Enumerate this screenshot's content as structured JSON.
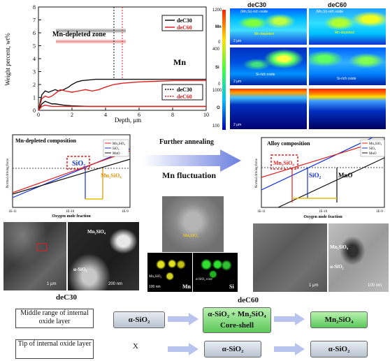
{
  "top_chart": {
    "ylabel": "Weight percent, wt%",
    "xlabel": "Depth, μm",
    "x_ticks": [
      "0",
      "2",
      "4",
      "6",
      "8",
      "10"
    ],
    "y_ticks": [
      "0",
      "1",
      "2",
      "3",
      "4",
      "5",
      "6",
      "7",
      "8"
    ],
    "zone_label": "Mn-depleted zone",
    "mn_label": "Mn",
    "si_label": "Si",
    "legend_mn": [
      "deC30",
      "deC60"
    ],
    "legend_si": [
      "deC30",
      "deC60"
    ]
  },
  "chart_data": [
    {
      "type": "line",
      "xlabel": "Depth, μm",
      "ylabel": "Weight percent, wt%",
      "xlim": [
        0,
        10
      ],
      "ylim": [
        0,
        8
      ],
      "series": [
        {
          "name": "deC30",
          "element": "Mn",
          "color": "#111111",
          "x": [
            0,
            0.2,
            0.4,
            0.6,
            0.8,
            1.0,
            1.2,
            1.5,
            1.8,
            2.0,
            2.3,
            2.6,
            3.0,
            3.4,
            4.0,
            4.5,
            5,
            6,
            7,
            8,
            9,
            10
          ],
          "y": [
            0,
            1.2,
            1.5,
            1.4,
            1.5,
            1.6,
            1.5,
            1.6,
            1.8,
            2.0,
            2.2,
            2.3,
            2.35,
            2.4,
            2.4,
            2.4,
            2.4,
            2.4,
            2.4,
            2.4,
            2.4,
            2.4
          ]
        },
        {
          "name": "deC60",
          "element": "Mn",
          "color": "#e02020",
          "x": [
            0,
            0.2,
            0.4,
            0.6,
            0.8,
            1.0,
            1.3,
            1.6,
            2.0,
            2.4,
            2.8,
            3.2,
            3.6,
            4.0,
            4.5,
            5,
            6,
            7,
            8,
            9,
            10
          ],
          "y": [
            0,
            0.9,
            1.1,
            1.0,
            1.1,
            1.3,
            1.6,
            1.5,
            1.4,
            1.5,
            1.6,
            1.5,
            1.6,
            1.8,
            2.0,
            2.1,
            2.2,
            2.25,
            2.3,
            2.3,
            2.3
          ]
        },
        {
          "name": "deC30",
          "element": "Si",
          "color": "#111111",
          "x": [
            0,
            0.2,
            0.4,
            0.6,
            0.8,
            1.0,
            1.5,
            2,
            3,
            4,
            5,
            6,
            7,
            8,
            9,
            10
          ],
          "y": [
            0,
            0.5,
            0.7,
            0.6,
            0.5,
            0.5,
            0.4,
            0.35,
            0.3,
            0.3,
            0.3,
            0.3,
            0.3,
            0.3,
            0.3,
            0.3
          ]
        },
        {
          "name": "deC60",
          "element": "Si",
          "color": "#e02020",
          "x": [
            0,
            0.2,
            0.4,
            0.6,
            0.8,
            1.0,
            1.5,
            2,
            3,
            4,
            5,
            6,
            7,
            8,
            9,
            10
          ],
          "y": [
            0,
            0.3,
            0.4,
            0.35,
            0.3,
            0.3,
            0.3,
            0.3,
            0.3,
            0.3,
            0.3,
            0.3,
            0.3,
            0.3,
            0.3,
            0.3
          ]
        }
      ],
      "vlines": [
        {
          "x": 4.5,
          "name": "deC30"
        },
        {
          "x": 5.0,
          "name": "deC60"
        }
      ]
    }
  ],
  "maps": {
    "col_labels": [
      "deC30",
      "deC60"
    ],
    "rows": [
      {
        "elem": "Mn",
        "scale_top": "1200",
        "scale_bot": "0",
        "label_a": "(Mn,Si)-rich oxide",
        "label_b": "Mn-depleted",
        "label_c": "(Mn,Si)-rich oxide",
        "label_d": "Mn-depleted"
      },
      {
        "elem": "Si",
        "scale_top": "400",
        "scale_bot": "0",
        "label_a": "Si-rich oxide",
        "label_c": "Si-rich oxide"
      },
      {
        "elem": "O",
        "scale_top": "1000",
        "scale_bot": "100"
      }
    ],
    "scale_bar": "2 μm"
  },
  "driving_left": {
    "title": "Mn-depleted composition",
    "ylabel": "Normal driving force",
    "xlabel": "Oxygen mole fraction",
    "x_ticks": [
      "1E-11",
      "1E-10",
      "1E-9"
    ],
    "legend": [
      "Mn₂SiO₄",
      "SiO₂",
      "MnO"
    ],
    "box_label": "SiO₂",
    "phase_label": "Mn₂SiO₄"
  },
  "driving_right": {
    "title": "Alloy composition",
    "ylabel": "Normal driving force",
    "xlabel": "Oxygen mole fraction",
    "x_ticks": [
      "1E-11",
      "1E-10",
      "1E-9"
    ],
    "legend": [
      "Mn₂SiO₄",
      "SiO₂",
      "MnO"
    ],
    "box_label": "Mn₂SiO₄",
    "label_sio2": "SiO₂",
    "label_mno": "MnO"
  },
  "middle": {
    "further_annealing": "Further annealing",
    "mn_fluctuation": "Mn fluctuation"
  },
  "micro_left": {
    "label_oxide": "Mn₂SiO₄",
    "label_sio2": "α-SiO₂",
    "scale1": "1 μm",
    "scale2": "200 nm",
    "sample": "deC30"
  },
  "micro_center": {
    "label_core": "Mn₂SiO₄",
    "mn": "Mn",
    "si": "Si",
    "label_mn": "Mn₂SiO₄",
    "label_si": "α-SiO₂ core",
    "scale": "100 nm",
    "sample": "deC60"
  },
  "micro_right": {
    "label_oxide": "Mn₂SiO₄",
    "label_sio2": "α-SiO₂",
    "scale1": "1 μm",
    "scale2": "100 nm"
  },
  "table": {
    "row1_label": "Middle range of internal oxide layer",
    "row2_label": "Tip of internal oxide layer",
    "r1_s1": "α-SiO₂",
    "r1_s2a": "α-SiO₂ + Mn₂SiO₄",
    "r1_s2b": "Core-shell",
    "r1_s3": "Mn₂SiO₄",
    "r2_s1": "X",
    "r2_s2": "α-SiO₂",
    "r2_s3": "α-SiO₂"
  }
}
